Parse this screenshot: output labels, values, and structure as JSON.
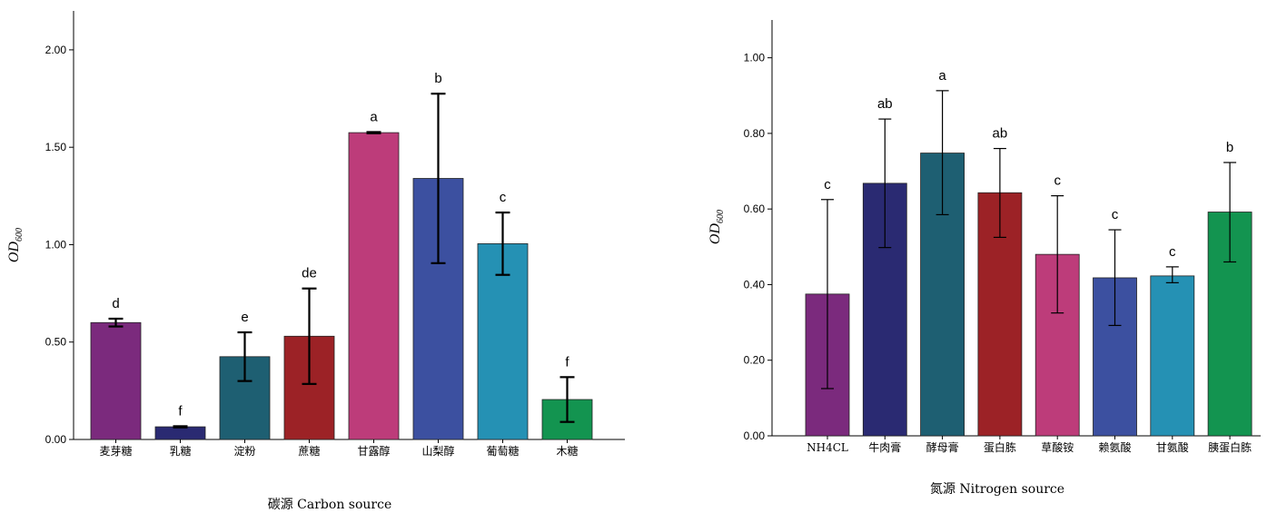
{
  "chart_data": [
    {
      "type": "bar",
      "xlabel": "碳源 Carbon source",
      "ylabel": "OD",
      "ylabel_sub": "600",
      "ylim": [
        0,
        2.2
      ],
      "yticks": [
        "0.00",
        "0.50",
        "1.00",
        "1.50",
        "2.00"
      ],
      "ytick_values": [
        0,
        0.5,
        1.0,
        1.5,
        2.0
      ],
      "grid": false,
      "categories": [
        "麦芽糖",
        "乳糖",
        "淀粉",
        "蔗糖",
        "甘露醇",
        "山梨醇",
        "葡萄糖",
        "木糖"
      ],
      "values": [
        0.6,
        0.065,
        0.425,
        0.53,
        1.575,
        1.34,
        1.005,
        0.205
      ],
      "error_low": [
        0.58,
        0.062,
        0.3,
        0.285,
        1.572,
        0.905,
        0.845,
        0.09
      ],
      "error_high": [
        0.62,
        0.068,
        0.55,
        0.775,
        1.578,
        1.775,
        1.165,
        0.32
      ],
      "significance": [
        "d",
        "f",
        "e",
        "de",
        "a",
        "b",
        "c",
        "f"
      ],
      "colors": [
        "#7b2a7d",
        "#2a2a72",
        "#1e5f72",
        "#9c2226",
        "#bd3c7a",
        "#3c50a0",
        "#2591b4",
        "#139450"
      ]
    },
    {
      "type": "bar",
      "xlabel": "氮源 Nitrogen source",
      "ylabel": "OD",
      "ylabel_sub": "600",
      "ylim": [
        0,
        1.1
      ],
      "yticks": [
        "0.00",
        "0.20",
        "0.40",
        "0.60",
        "0.80",
        "1.00"
      ],
      "ytick_values": [
        0,
        0.2,
        0.4,
        0.6,
        0.8,
        1.0
      ],
      "grid": false,
      "categories": [
        "NH4CL",
        "牛肉膏",
        "酵母膏",
        "蛋白胨",
        "草酸铵",
        "赖氨酸",
        "甘氨酸",
        "胰蛋白胨"
      ],
      "values": [
        0.375,
        0.668,
        0.748,
        0.643,
        0.48,
        0.418,
        0.423,
        0.592
      ],
      "error_low": [
        0.125,
        0.498,
        0.585,
        0.525,
        0.325,
        0.292,
        0.405,
        0.46
      ],
      "error_high": [
        0.625,
        0.838,
        0.913,
        0.76,
        0.635,
        0.545,
        0.447,
        0.723
      ],
      "significance": [
        "c",
        "ab",
        "a",
        "ab",
        "c",
        "c",
        "c",
        "b"
      ],
      "colors": [
        "#7b2a7d",
        "#2a2a72",
        "#1e5f72",
        "#9c2226",
        "#bd3c7a",
        "#3c50a0",
        "#2591b4",
        "#139450"
      ]
    }
  ]
}
